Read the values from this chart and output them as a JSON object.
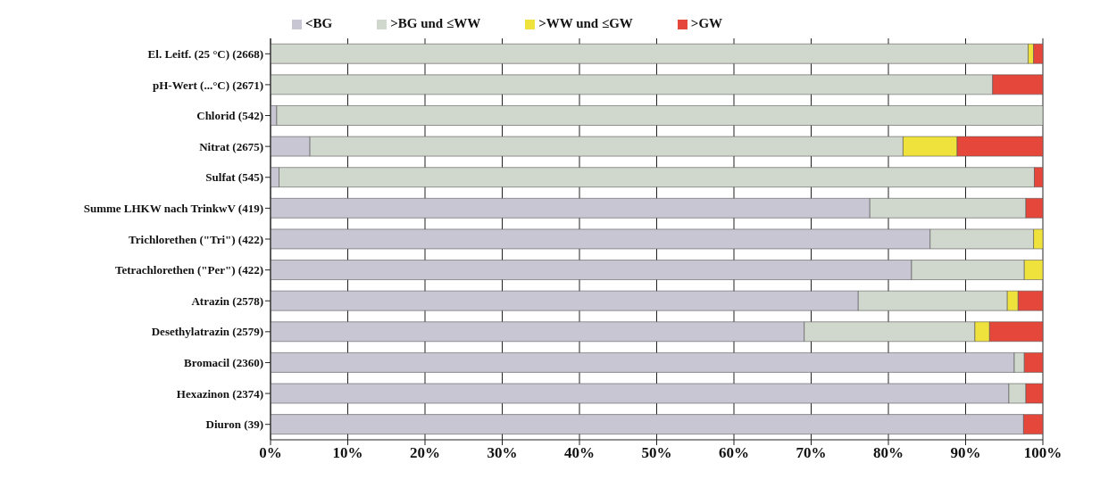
{
  "chart_data": {
    "type": "bar",
    "orientation": "horizontal",
    "stacked": true,
    "categories": [
      "El. Leitf.  (25 °C) (2668)",
      "pH-Wert  (...°C) (2671)",
      "Chlorid (542)",
      "Nitrat (2675)",
      "Sulfat (545)",
      "Summe LHKW nach TrinkwV (419)",
      "Trichlorethen (\"Tri\") (422)",
      "Tetrachlorethen (\"Per\") (422)",
      "Atrazin (2578)",
      "Desethylatrazin (2579)",
      "Bromacil (2360)",
      "Hexazinon (2374)",
      "Diuron (39)"
    ],
    "series": [
      {
        "name": "<BG",
        "color": "#c9c6d4",
        "values": [
          0,
          0,
          0.8,
          5.1,
          1.1,
          77.6,
          85.4,
          83.0,
          76.1,
          69.1,
          96.3,
          95.6,
          97.5
        ]
      },
      {
        "name": ">BG und ≤WW",
        "color": "#d0d7cd",
        "values": [
          98.1,
          93.5,
          99.2,
          76.8,
          97.8,
          20.2,
          13.4,
          14.6,
          19.3,
          22.1,
          1.3,
          2.2,
          0
        ]
      },
      {
        "name": ">WW und ≤GW",
        "color": "#f0e23c",
        "values": [
          0.7,
          0,
          0,
          7.0,
          0,
          0,
          1.2,
          2.4,
          1.4,
          1.9,
          0,
          0,
          0
        ]
      },
      {
        "name": ">GW",
        "color": "#e5473b",
        "values": [
          1.2,
          6.5,
          0,
          11.1,
          1.1,
          2.2,
          0,
          0,
          3.2,
          6.9,
          2.4,
          2.2,
          2.5
        ]
      }
    ],
    "xlim": [
      0,
      100
    ],
    "xticks": [
      {
        "value": 0,
        "label": "0%"
      },
      {
        "value": 10,
        "label": "10%"
      },
      {
        "value": 20,
        "label": "20%"
      },
      {
        "value": 30,
        "label": "30%"
      },
      {
        "value": 40,
        "label": "40%"
      },
      {
        "value": 50,
        "label": "50%"
      },
      {
        "value": 60,
        "label": "60%"
      },
      {
        "value": 70,
        "label": "70%"
      },
      {
        "value": 80,
        "label": "80%"
      },
      {
        "value": 90,
        "label": "90%"
      },
      {
        "value": 100,
        "label": "100%"
      }
    ],
    "grid": "x",
    "legend": "top"
  }
}
